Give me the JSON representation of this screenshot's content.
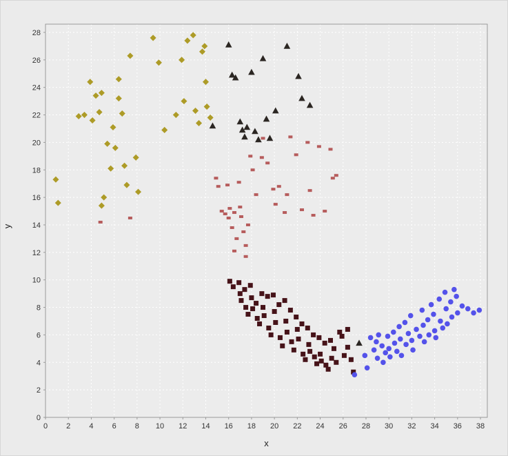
{
  "chart_data": {
    "type": "scatter",
    "title": "",
    "xlabel": "x",
    "ylabel": "y",
    "xlim": [
      0,
      38.6
    ],
    "ylim": [
      0,
      28.6
    ],
    "x_ticks": [
      0,
      2,
      4,
      6,
      8,
      10,
      12,
      14,
      16,
      18,
      20,
      22,
      24,
      26,
      28,
      30,
      32,
      34,
      36,
      38
    ],
    "y_ticks": [
      0,
      2,
      4,
      6,
      8,
      10,
      12,
      14,
      16,
      18,
      20,
      22,
      24,
      26,
      28
    ],
    "grid": true,
    "legend": "none",
    "colors": {
      "figure_bg": "#ebebeb",
      "plot_bg": "#ececec",
      "grid": "#ffffff",
      "axis": "#9a9a9a",
      "tick_text": "#333333"
    },
    "series": [
      {
        "name": "olive-diamonds",
        "marker": "diamond",
        "color": "#ad9b27",
        "points": [
          [
            0.9,
            17.3
          ],
          [
            1.1,
            15.6
          ],
          [
            2.9,
            21.9
          ],
          [
            3.4,
            22.0
          ],
          [
            3.9,
            24.4
          ],
          [
            4.1,
            21.6
          ],
          [
            4.4,
            23.4
          ],
          [
            4.9,
            23.6
          ],
          [
            4.7,
            22.2
          ],
          [
            5.1,
            16.0
          ],
          [
            4.9,
            15.4
          ],
          [
            5.4,
            19.9
          ],
          [
            5.7,
            18.1
          ],
          [
            5.9,
            21.1
          ],
          [
            6.1,
            19.6
          ],
          [
            6.4,
            24.6
          ],
          [
            6.4,
            23.2
          ],
          [
            6.7,
            22.1
          ],
          [
            6.9,
            18.3
          ],
          [
            7.1,
            16.9
          ],
          [
            7.4,
            26.3
          ],
          [
            7.9,
            18.9
          ],
          [
            8.1,
            16.4
          ],
          [
            9.4,
            27.6
          ],
          [
            9.9,
            25.8
          ],
          [
            10.4,
            20.9
          ],
          [
            11.4,
            22.0
          ],
          [
            11.9,
            26.0
          ],
          [
            12.1,
            23.0
          ],
          [
            12.4,
            27.4
          ],
          [
            12.9,
            27.8
          ],
          [
            13.1,
            22.3
          ],
          [
            13.4,
            21.4
          ],
          [
            13.7,
            26.6
          ],
          [
            13.9,
            27.0
          ],
          [
            14.0,
            24.4
          ],
          [
            14.1,
            22.6
          ],
          [
            14.4,
            21.8
          ]
        ]
      },
      {
        "name": "black-triangles",
        "marker": "triangle",
        "color": "#2b2622",
        "points": [
          [
            14.6,
            21.2
          ],
          [
            16.0,
            27.1
          ],
          [
            16.3,
            24.9
          ],
          [
            16.6,
            24.7
          ],
          [
            17.0,
            21.5
          ],
          [
            17.2,
            20.9
          ],
          [
            17.4,
            20.4
          ],
          [
            17.6,
            21.1
          ],
          [
            18.0,
            25.1
          ],
          [
            18.3,
            20.8
          ],
          [
            18.6,
            20.2
          ],
          [
            19.0,
            26.1
          ],
          [
            19.3,
            21.7
          ],
          [
            19.6,
            20.3
          ],
          [
            20.1,
            22.3
          ],
          [
            21.1,
            27.0
          ],
          [
            22.1,
            24.8
          ],
          [
            22.4,
            23.2
          ],
          [
            23.1,
            22.7
          ],
          [
            27.4,
            5.4
          ]
        ]
      },
      {
        "name": "rose-squares",
        "marker": "small-square",
        "color": "#b65c5c",
        "points": [
          [
            4.8,
            14.2
          ],
          [
            7.4,
            14.5
          ],
          [
            14.9,
            17.4
          ],
          [
            15.1,
            16.8
          ],
          [
            15.4,
            15.0
          ],
          [
            15.7,
            14.8
          ],
          [
            15.9,
            16.9
          ],
          [
            16.0,
            14.5
          ],
          [
            16.1,
            15.2
          ],
          [
            16.3,
            13.8
          ],
          [
            16.5,
            14.9
          ],
          [
            16.5,
            12.1
          ],
          [
            16.7,
            13.0
          ],
          [
            16.9,
            17.1
          ],
          [
            17.0,
            15.3
          ],
          [
            17.1,
            14.6
          ],
          [
            17.3,
            13.5
          ],
          [
            17.5,
            12.5
          ],
          [
            17.5,
            11.7
          ],
          [
            17.7,
            14.0
          ],
          [
            17.9,
            19.0
          ],
          [
            18.1,
            18.0
          ],
          [
            18.4,
            16.2
          ],
          [
            18.9,
            18.9
          ],
          [
            19.0,
            20.3
          ],
          [
            19.4,
            18.5
          ],
          [
            19.9,
            16.6
          ],
          [
            20.1,
            15.5
          ],
          [
            20.4,
            16.8
          ],
          [
            20.9,
            14.9
          ],
          [
            21.1,
            16.2
          ],
          [
            21.4,
            20.4
          ],
          [
            21.9,
            19.1
          ],
          [
            22.4,
            15.1
          ],
          [
            22.9,
            20.0
          ],
          [
            23.1,
            16.5
          ],
          [
            23.4,
            14.7
          ],
          [
            23.9,
            19.7
          ],
          [
            24.4,
            15.0
          ],
          [
            24.9,
            19.5
          ],
          [
            25.1,
            17.4
          ],
          [
            25.4,
            17.6
          ]
        ]
      },
      {
        "name": "maroon-squares",
        "marker": "square",
        "color": "#461319",
        "points": [
          [
            16.1,
            9.9
          ],
          [
            16.4,
            9.5
          ],
          [
            16.9,
            9.8
          ],
          [
            17.0,
            9.0
          ],
          [
            17.1,
            8.5
          ],
          [
            17.4,
            9.3
          ],
          [
            17.5,
            8.0
          ],
          [
            17.7,
            7.5
          ],
          [
            17.9,
            9.6
          ],
          [
            18.0,
            8.7
          ],
          [
            18.1,
            7.9
          ],
          [
            18.4,
            8.3
          ],
          [
            18.5,
            7.2
          ],
          [
            18.7,
            6.8
          ],
          [
            18.9,
            9.0
          ],
          [
            19.0,
            8.0
          ],
          [
            19.1,
            7.4
          ],
          [
            19.4,
            8.8
          ],
          [
            19.5,
            6.5
          ],
          [
            19.7,
            6.0
          ],
          [
            19.9,
            8.9
          ],
          [
            20.0,
            7.7
          ],
          [
            20.1,
            6.9
          ],
          [
            20.4,
            8.2
          ],
          [
            20.5,
            5.8
          ],
          [
            20.7,
            5.2
          ],
          [
            20.9,
            8.5
          ],
          [
            21.0,
            7.0
          ],
          [
            21.1,
            6.2
          ],
          [
            21.4,
            7.8
          ],
          [
            21.5,
            5.5
          ],
          [
            21.7,
            4.9
          ],
          [
            21.9,
            7.3
          ],
          [
            22.0,
            6.4
          ],
          [
            22.1,
            5.7
          ],
          [
            22.4,
            6.8
          ],
          [
            22.5,
            4.6
          ],
          [
            22.7,
            4.2
          ],
          [
            22.9,
            6.5
          ],
          [
            23.0,
            5.3
          ],
          [
            23.1,
            4.8
          ],
          [
            23.4,
            6.0
          ],
          [
            23.5,
            4.4
          ],
          [
            23.7,
            3.9
          ],
          [
            23.9,
            5.8
          ],
          [
            24.0,
            4.6
          ],
          [
            24.1,
            4.1
          ],
          [
            24.4,
            5.4
          ],
          [
            24.5,
            3.8
          ],
          [
            24.7,
            3.5
          ],
          [
            24.9,
            5.6
          ],
          [
            25.0,
            4.3
          ],
          [
            25.2,
            5.0
          ],
          [
            25.4,
            4.0
          ],
          [
            25.7,
            6.2
          ],
          [
            25.9,
            5.9
          ],
          [
            26.1,
            4.5
          ],
          [
            26.4,
            6.4
          ],
          [
            26.4,
            5.1
          ],
          [
            26.7,
            4.2
          ],
          [
            26.9,
            3.3
          ]
        ]
      },
      {
        "name": "blue-circles",
        "marker": "circle",
        "color": "#5452ea",
        "points": [
          [
            27.0,
            3.1
          ],
          [
            27.9,
            4.5
          ],
          [
            28.1,
            3.6
          ],
          [
            28.4,
            5.8
          ],
          [
            28.7,
            4.9
          ],
          [
            28.9,
            5.5
          ],
          [
            29.0,
            4.3
          ],
          [
            29.1,
            6.0
          ],
          [
            29.4,
            5.2
          ],
          [
            29.5,
            4.0
          ],
          [
            29.7,
            4.7
          ],
          [
            29.9,
            5.9
          ],
          [
            30.0,
            5.0
          ],
          [
            30.1,
            4.4
          ],
          [
            30.4,
            6.2
          ],
          [
            30.5,
            5.4
          ],
          [
            30.7,
            4.8
          ],
          [
            30.9,
            6.6
          ],
          [
            31.0,
            5.7
          ],
          [
            31.1,
            4.5
          ],
          [
            31.4,
            6.9
          ],
          [
            31.5,
            5.3
          ],
          [
            31.7,
            6.1
          ],
          [
            31.9,
            7.4
          ],
          [
            32.0,
            5.6
          ],
          [
            32.1,
            4.9
          ],
          [
            32.4,
            6.4
          ],
          [
            32.7,
            5.9
          ],
          [
            32.9,
            7.8
          ],
          [
            33.0,
            6.7
          ],
          [
            33.1,
            5.5
          ],
          [
            33.4,
            7.1
          ],
          [
            33.5,
            6.0
          ],
          [
            33.7,
            8.2
          ],
          [
            33.9,
            7.5
          ],
          [
            34.0,
            6.3
          ],
          [
            34.1,
            5.8
          ],
          [
            34.4,
            8.6
          ],
          [
            34.5,
            7.0
          ],
          [
            34.7,
            6.5
          ],
          [
            34.9,
            9.1
          ],
          [
            35.0,
            7.9
          ],
          [
            35.1,
            6.8
          ],
          [
            35.4,
            8.4
          ],
          [
            35.5,
            7.3
          ],
          [
            35.7,
            9.3
          ],
          [
            35.9,
            8.8
          ],
          [
            36.0,
            7.6
          ],
          [
            36.4,
            8.1
          ],
          [
            36.9,
            7.9
          ],
          [
            37.4,
            7.6
          ],
          [
            37.9,
            7.8
          ]
        ]
      }
    ]
  }
}
